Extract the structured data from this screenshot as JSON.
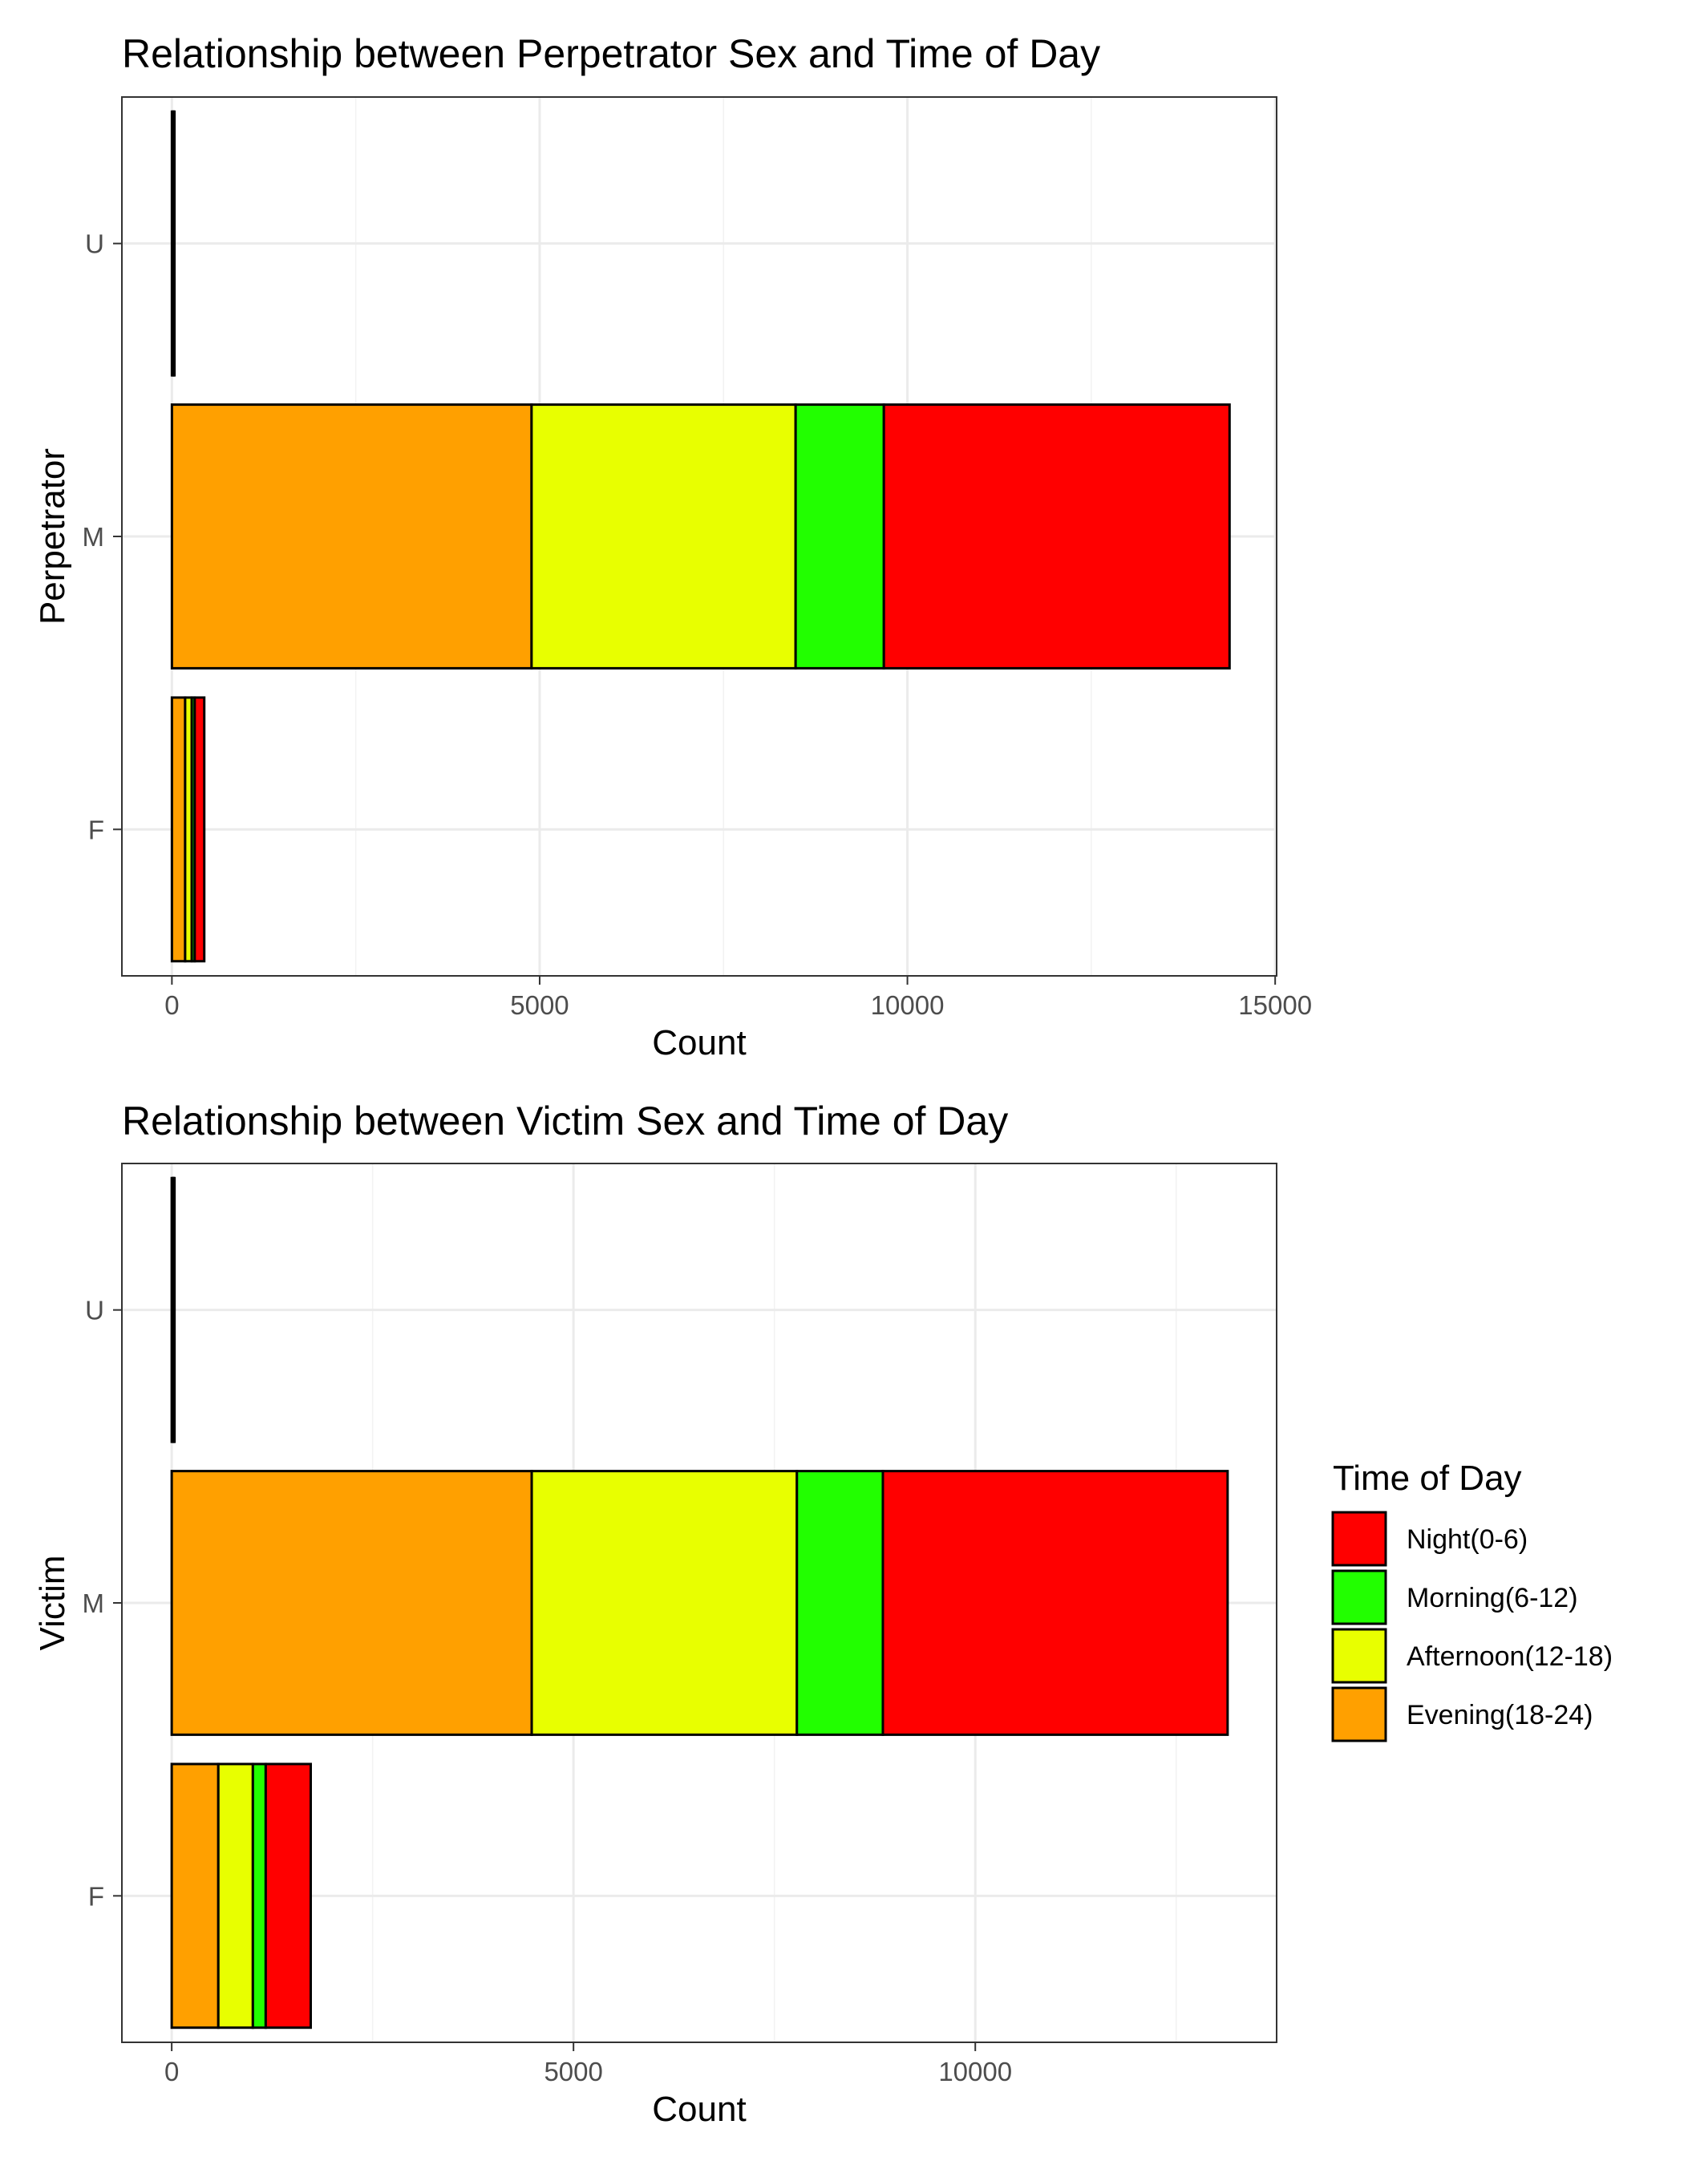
{
  "legend": {
    "title": "Time of Day",
    "entries": [
      {
        "key": "night",
        "label": "Night(0-6)",
        "color": "#FF0000"
      },
      {
        "key": "morning",
        "label": "Morning(6-12)",
        "color": "#22FF00"
      },
      {
        "key": "afternoon",
        "label": "Afternoon(12-18)",
        "color": "#E8FF00"
      },
      {
        "key": "evening",
        "label": "Evening(18-24)",
        "color": "#FFA000"
      }
    ]
  },
  "chart_data": [
    {
      "type": "bar",
      "orientation": "horizontal",
      "stacked": true,
      "title": "Relationship between Perpetrator Sex and Time of Day",
      "xlabel": "Count",
      "ylabel": "Perpetrator",
      "categories": [
        "F",
        "M",
        "U"
      ],
      "xlim": [
        -680,
        15020
      ],
      "xticks": [
        0,
        5000,
        10000,
        15000
      ],
      "grid": true,
      "series": [
        {
          "name": "Evening(18-24)",
          "color": "#FFA000",
          "values": [
            180,
            4890,
            10
          ]
        },
        {
          "name": "Afternoon(12-18)",
          "color": "#E8FF00",
          "values": [
            90,
            3590,
            10
          ]
        },
        {
          "name": "Morning(6-12)",
          "color": "#22FF00",
          "values": [
            40,
            1200,
            5
          ]
        },
        {
          "name": "Night(0-6)",
          "color": "#FF0000",
          "values": [
            130,
            4700,
            10
          ]
        }
      ]
    },
    {
      "type": "bar",
      "orientation": "horizontal",
      "stacked": true,
      "title": "Relationship between Victim Sex and Time of Day",
      "xlabel": "Count",
      "ylabel": "Victim",
      "categories": [
        "F",
        "M",
        "U"
      ],
      "xlim": [
        -620,
        13750
      ],
      "xticks": [
        0,
        5000,
        10000
      ],
      "grid": true,
      "series": [
        {
          "name": "Evening(18-24)",
          "color": "#FFA000",
          "values": [
            580,
            4480,
            10
          ]
        },
        {
          "name": "Afternoon(12-18)",
          "color": "#E8FF00",
          "values": [
            430,
            3300,
            10
          ]
        },
        {
          "name": "Morning(6-12)",
          "color": "#22FF00",
          "values": [
            160,
            1070,
            5
          ]
        },
        {
          "name": "Night(0-6)",
          "color": "#FF0000",
          "values": [
            560,
            4290,
            10
          ]
        }
      ]
    }
  ]
}
